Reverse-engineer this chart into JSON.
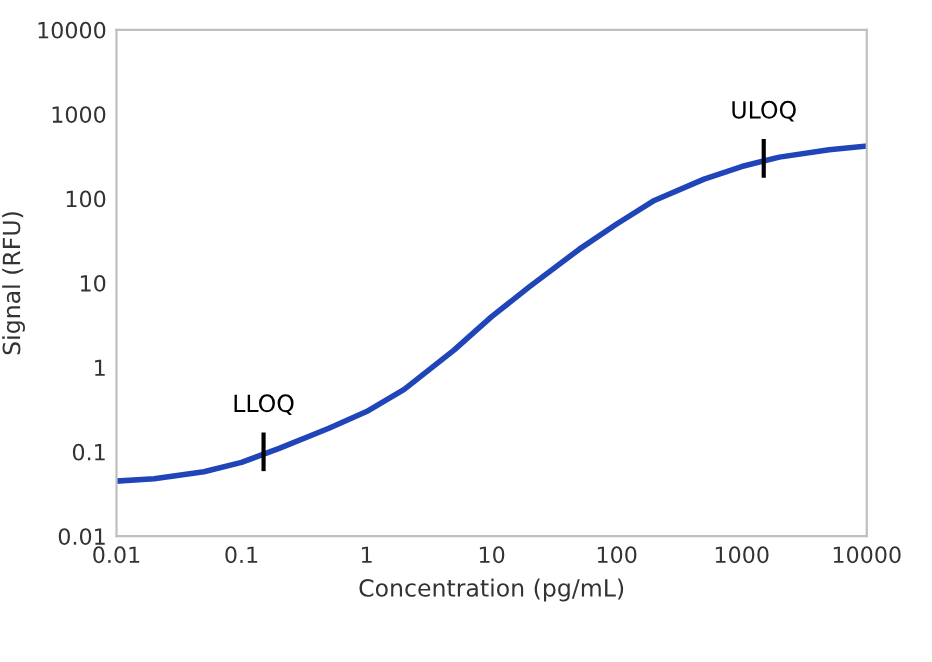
{
  "chart_data": {
    "type": "line",
    "xlabel": "Concentration (pg/mL)",
    "ylabel": "Signal (RFU)",
    "log": "xy",
    "grid": false,
    "x": [
      0.01,
      0.02,
      0.05,
      0.1,
      0.2,
      0.5,
      1,
      2,
      5,
      10,
      20,
      50,
      100,
      200,
      500,
      1000,
      2000,
      5000,
      10000
    ],
    "series": [
      {
        "color": "#1f45b8",
        "values": [
          0.045,
          0.048,
          0.058,
          0.075,
          0.11,
          0.19,
          0.3,
          0.55,
          1.6,
          4,
          9,
          25,
          50,
          95,
          170,
          240,
          310,
          380,
          420
        ]
      }
    ],
    "xlim": [
      0.01,
      10000
    ],
    "ylim": [
      0.01,
      10000
    ],
    "xticks": [
      0.01,
      0.1,
      1,
      10,
      100,
      1000,
      10000
    ],
    "yticks": [
      0.01,
      0.1,
      1,
      10,
      100,
      1000,
      10000
    ],
    "annotations": [
      {
        "text": "LLOQ",
        "x": 0.15,
        "y": 0.1
      },
      {
        "text": "ULOQ",
        "x": 1500,
        "y": 300
      }
    ]
  }
}
